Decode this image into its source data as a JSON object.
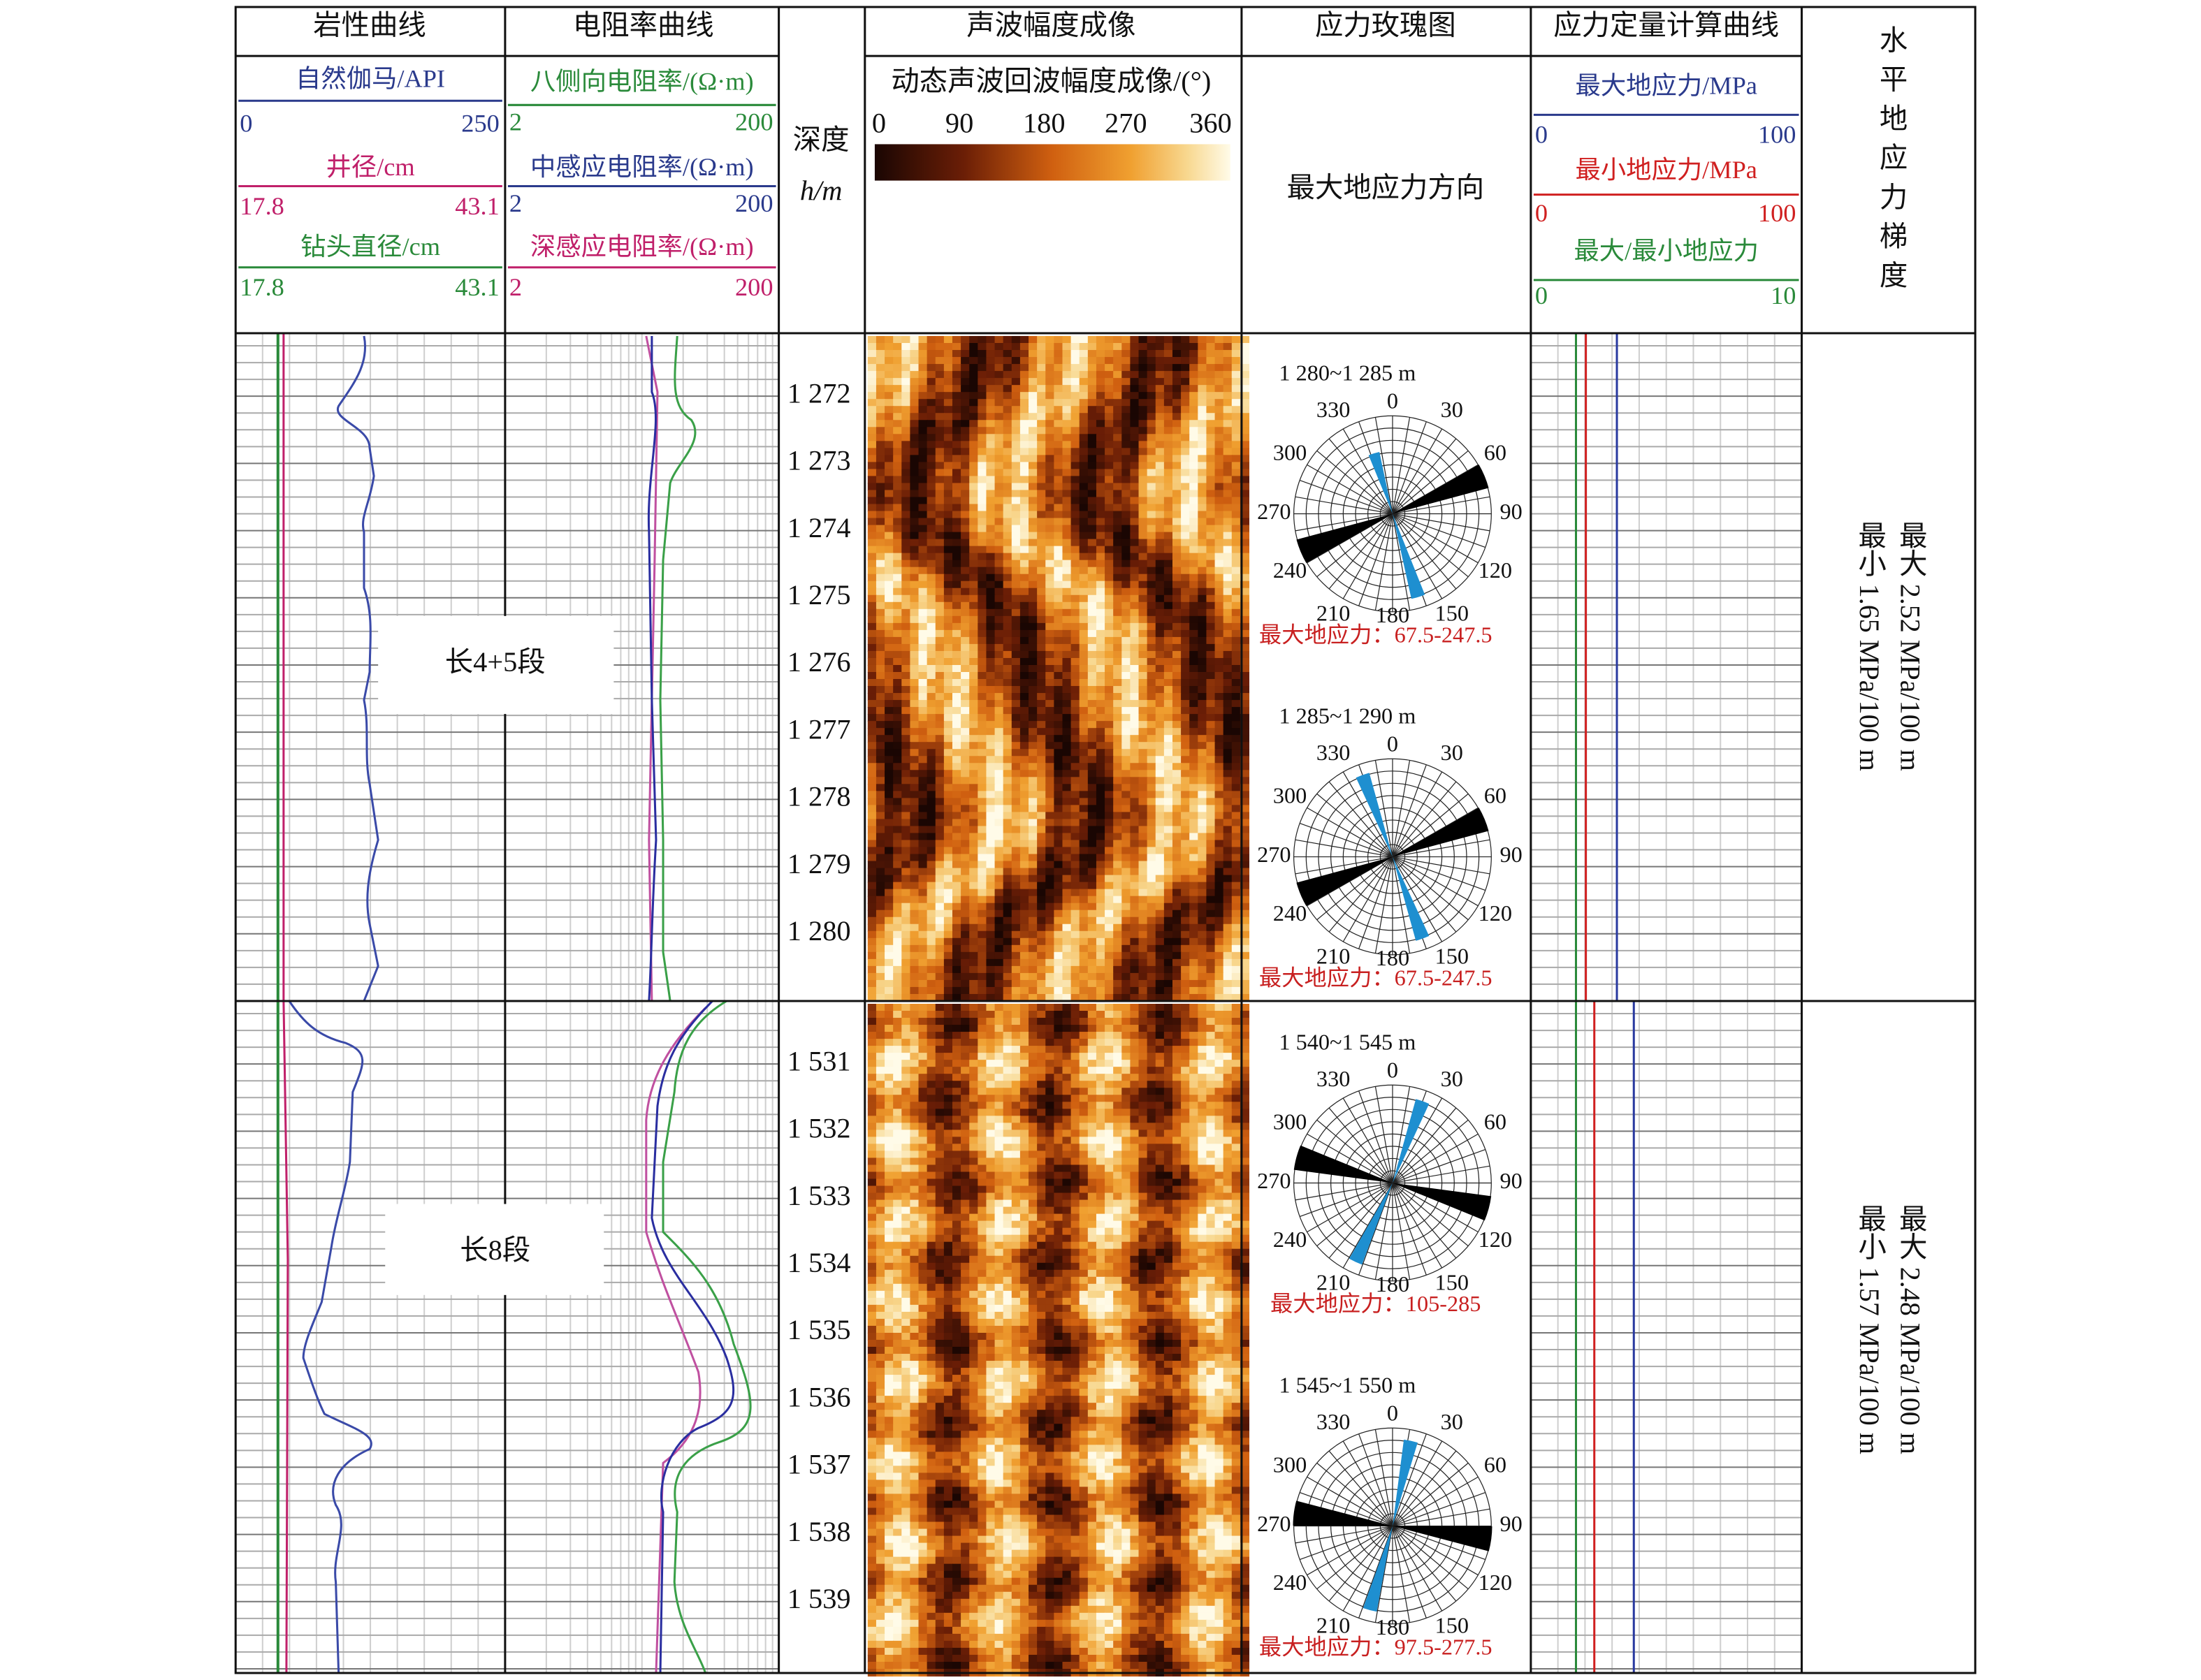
{
  "header": {
    "lithology": {
      "title": "岩性曲线",
      "curves": [
        {
          "name": "自然伽马/API",
          "min": "0",
          "max": "250"
        },
        {
          "name": "井径/cm",
          "min": "17.8",
          "max": "43.1"
        },
        {
          "name": "钻头直径/cm",
          "min": "17.8",
          "max": "43.1"
        }
      ]
    },
    "resistivity": {
      "title": "电阻率曲线",
      "curves": [
        {
          "name": "八侧向电阻率/(Ω·m)",
          "min": "2",
          "max": "200"
        },
        {
          "name": "中感应电阻率/(Ω·m)",
          "min": "2",
          "max": "200"
        },
        {
          "name": "深感应电阻率/(Ω·m)",
          "min": "2",
          "max": "200"
        }
      ]
    },
    "depth": {
      "title": "深度",
      "unit": "h/m"
    },
    "acoustic": {
      "title": "声波幅度成像",
      "subtitle": "动态声波回波幅度成像/(°)",
      "scale": [
        "0",
        "90",
        "180",
        "270",
        "360"
      ]
    },
    "rose": {
      "title": "应力玫瑰图",
      "subtitle": "最大地应力方向"
    },
    "stress": {
      "title": "应力定量计算曲线",
      "curves": [
        {
          "name": "最大地应力/MPa",
          "min": "0",
          "max": "100"
        },
        {
          "name": "最小地应力/MPa",
          "min": "0",
          "max": "100"
        },
        {
          "name": "最大/最小地应力",
          "min": "0",
          "max": "10"
        }
      ]
    },
    "gradient": {
      "title": "水平地应力梯度"
    }
  },
  "rose_angles": [
    "0",
    "30",
    "60",
    "90",
    "120",
    "150",
    "180",
    "210",
    "240",
    "270",
    "300",
    "330"
  ],
  "sections": [
    {
      "label": "长4+5段",
      "depths": [
        "1 272",
        "1 273",
        "1 274",
        "1 275",
        "1 276",
        "1 277",
        "1 278",
        "1 279",
        "1 280"
      ],
      "roses": [
        {
          "range": "1 280~1 285 m",
          "caption": "最大地应力：67.5-247.5"
        },
        {
          "range": "1 285~1 290 m",
          "caption": "最大地应力：67.5-247.5"
        }
      ],
      "gradient_max": "最大 2.52 MPa/100 m",
      "gradient_min": "最小 1.65 MPa/100 m"
    },
    {
      "label": "长8段",
      "depths": [
        "1 531",
        "1 532",
        "1 533",
        "1 534",
        "1 535",
        "1 536",
        "1 537",
        "1 538",
        "1 539"
      ],
      "roses": [
        {
          "range": "1 540~1 545 m",
          "caption": "最大地应力：105-285"
        },
        {
          "range": "1 545~1 550 m",
          "caption": "最大地应力：97.5-277.5"
        }
      ],
      "gradient_max": "最大 2.48 MPa/100 m",
      "gradient_min": "最小 1.57 MPa/100 m"
    }
  ]
}
